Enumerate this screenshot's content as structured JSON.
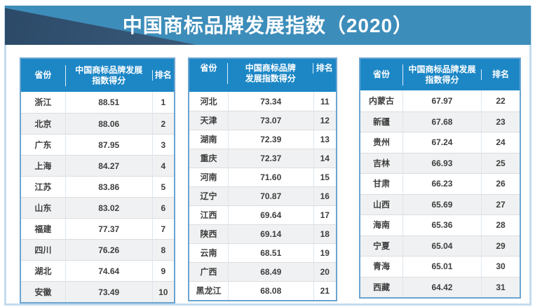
{
  "banner": {
    "title": "中国商标品牌发展指数（2020）",
    "bg_color": "#3d8dba",
    "triangle_color_dark": "#2c4a68",
    "triangle_color_light": "#4d7094",
    "title_color": "#ffffff"
  },
  "colors": {
    "table_header_bg": "#1d87c6",
    "table_border": "#6ba4d0",
    "frame_border": "#c3dcee",
    "row_alt_bg": "#f0f1f2",
    "row_divider": "#dcdddf",
    "body_text": "#3e3e3e"
  },
  "tables": [
    {
      "headers": {
        "province": "省份",
        "score": "中国商标品牌发展\n指数得分",
        "rank": "排名"
      },
      "rows": [
        {
          "province": "浙江",
          "score": "88.51",
          "rank": "1"
        },
        {
          "province": "北京",
          "score": "88.06",
          "rank": "2"
        },
        {
          "province": "广东",
          "score": "87.95",
          "rank": "3"
        },
        {
          "province": "上海",
          "score": "84.27",
          "rank": "4"
        },
        {
          "province": "江苏",
          "score": "83.86",
          "rank": "5"
        },
        {
          "province": "山东",
          "score": "83.02",
          "rank": "6"
        },
        {
          "province": "福建",
          "score": "77.37",
          "rank": "7"
        },
        {
          "province": "四川",
          "score": "76.26",
          "rank": "8"
        },
        {
          "province": "湖北",
          "score": "74.64",
          "rank": "9"
        },
        {
          "province": "安徽",
          "score": "73.49",
          "rank": "10"
        }
      ]
    },
    {
      "headers": {
        "province": "省份",
        "score": "中国商标品牌\n发展指数得分",
        "rank": "排名"
      },
      "rows": [
        {
          "province": "河北",
          "score": "73.34",
          "rank": "11"
        },
        {
          "province": "天津",
          "score": "73.07",
          "rank": "12"
        },
        {
          "province": "湖南",
          "score": "72.39",
          "rank": "13"
        },
        {
          "province": "重庆",
          "score": "72.37",
          "rank": "14"
        },
        {
          "province": "河南",
          "score": "71.60",
          "rank": "15"
        },
        {
          "province": "辽宁",
          "score": "70.87",
          "rank": "16"
        },
        {
          "province": "江西",
          "score": "69.64",
          "rank": "17"
        },
        {
          "province": "陕西",
          "score": "69.14",
          "rank": "18"
        },
        {
          "province": "云南",
          "score": "68.51",
          "rank": "19"
        },
        {
          "province": "广西",
          "score": "68.49",
          "rank": "20"
        },
        {
          "province": "黑龙江",
          "score": "68.08",
          "rank": "21"
        }
      ]
    },
    {
      "headers": {
        "province": "省份",
        "score": "中国商标品牌发展\n指数得分",
        "rank": "排名"
      },
      "rows": [
        {
          "province": "内蒙古",
          "score": "67.97",
          "rank": "22"
        },
        {
          "province": "新疆",
          "score": "67.68",
          "rank": "23"
        },
        {
          "province": "贵州",
          "score": "67.24",
          "rank": "24"
        },
        {
          "province": "吉林",
          "score": "66.93",
          "rank": "25"
        },
        {
          "province": "甘肃",
          "score": "66.23",
          "rank": "26"
        },
        {
          "province": "山西",
          "score": "65.69",
          "rank": "27"
        },
        {
          "province": "海南",
          "score": "65.36",
          "rank": "28"
        },
        {
          "province": "宁夏",
          "score": "65.04",
          "rank": "29"
        },
        {
          "province": "青海",
          "score": "65.01",
          "rank": "30"
        },
        {
          "province": "西藏",
          "score": "64.42",
          "rank": "31"
        }
      ]
    }
  ],
  "chart_data": {
    "type": "table",
    "title": "中国商标品牌发展指数（2020）",
    "columns": [
      "省份",
      "中国商标品牌发展指数得分",
      "排名"
    ],
    "rows": [
      [
        "浙江",
        88.51,
        1
      ],
      [
        "北京",
        88.06,
        2
      ],
      [
        "广东",
        87.95,
        3
      ],
      [
        "上海",
        84.27,
        4
      ],
      [
        "江苏",
        83.86,
        5
      ],
      [
        "山东",
        83.02,
        6
      ],
      [
        "福建",
        77.37,
        7
      ],
      [
        "四川",
        76.26,
        8
      ],
      [
        "湖北",
        74.64,
        9
      ],
      [
        "安徽",
        73.49,
        10
      ],
      [
        "河北",
        73.34,
        11
      ],
      [
        "天津",
        73.07,
        12
      ],
      [
        "湖南",
        72.39,
        13
      ],
      [
        "重庆",
        72.37,
        14
      ],
      [
        "河南",
        71.6,
        15
      ],
      [
        "辽宁",
        70.87,
        16
      ],
      [
        "江西",
        69.64,
        17
      ],
      [
        "陕西",
        69.14,
        18
      ],
      [
        "云南",
        68.51,
        19
      ],
      [
        "广西",
        68.49,
        20
      ],
      [
        "黑龙江",
        68.08,
        21
      ],
      [
        "内蒙古",
        67.97,
        22
      ],
      [
        "新疆",
        67.68,
        23
      ],
      [
        "贵州",
        67.24,
        24
      ],
      [
        "吉林",
        66.93,
        25
      ],
      [
        "甘肃",
        66.23,
        26
      ],
      [
        "山西",
        65.69,
        27
      ],
      [
        "海南",
        65.36,
        28
      ],
      [
        "宁夏",
        65.04,
        29
      ],
      [
        "青海",
        65.01,
        30
      ],
      [
        "西藏",
        64.42,
        31
      ]
    ],
    "layout": "three side-by-side table panels: ranks 1-10, 11-21, 22-31"
  }
}
